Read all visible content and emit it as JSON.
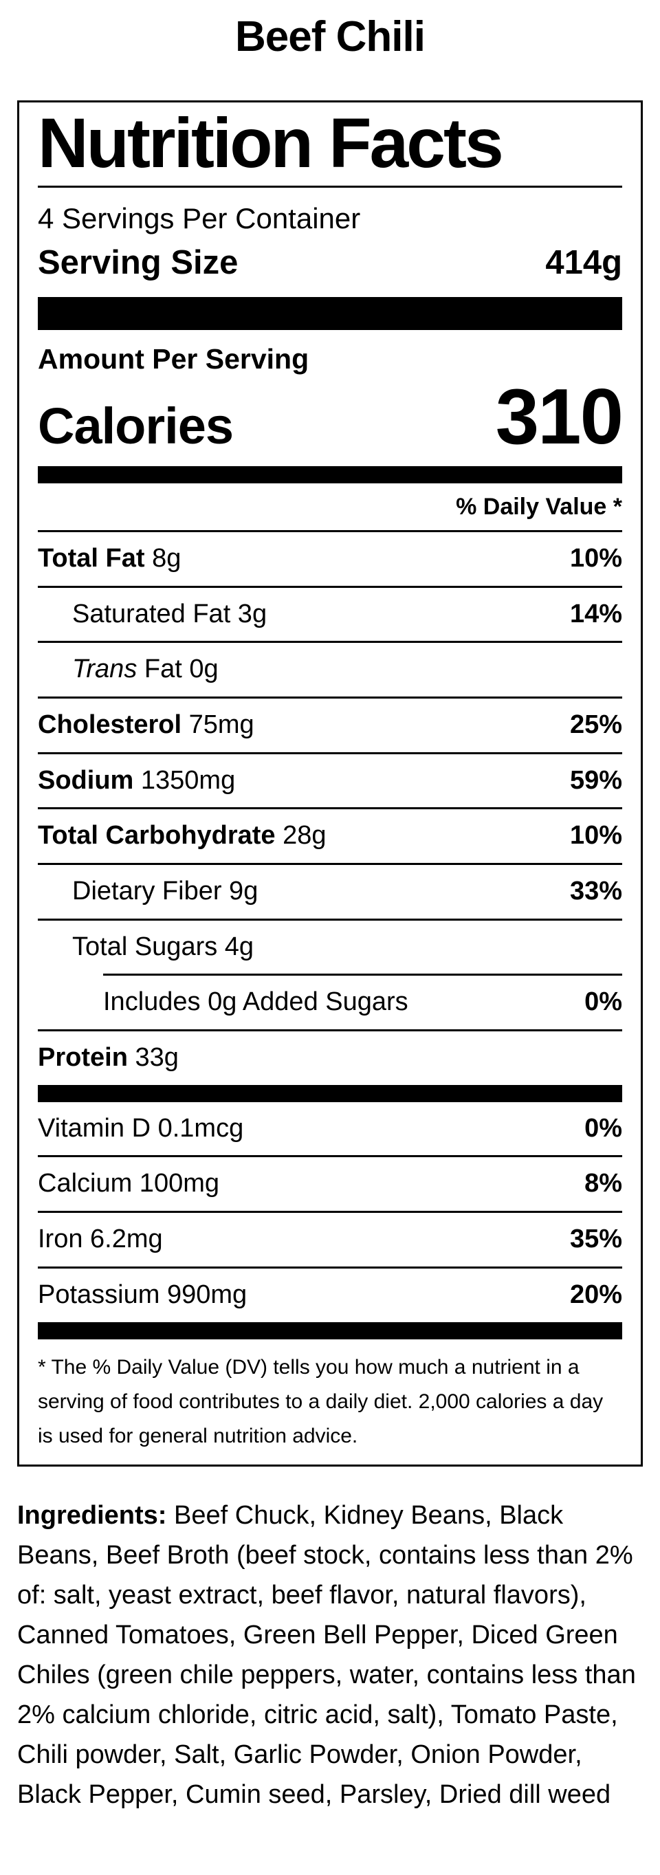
{
  "page": {
    "title": "Beef Chili",
    "colors": {
      "background": "#ffffff",
      "text": "#000000"
    }
  },
  "label": {
    "heading": "Nutrition Facts",
    "servings_per_container": "4 Servings Per Container",
    "serving_size_label": "Serving Size",
    "serving_size_value": "414g",
    "amount_per_serving": "Amount Per Serving",
    "calories_label": "Calories",
    "calories_value": "310",
    "daily_value_header": "% Daily Value *",
    "rows": [
      {
        "name": "Total Fat",
        "bold": true,
        "amount": "8g",
        "dv": "10%",
        "indent": 0
      },
      {
        "name": "Saturated Fat",
        "bold": false,
        "amount": "3g",
        "dv": "14%",
        "indent": 1
      },
      {
        "name": "Trans",
        "bold": false,
        "italic": true,
        "amount": "Fat 0g",
        "dv": "",
        "indent": 1
      },
      {
        "name": "Cholesterol",
        "bold": true,
        "amount": "75mg",
        "dv": "25%",
        "indent": 0
      },
      {
        "name": "Sodium",
        "bold": true,
        "amount": "1350mg",
        "dv": "59%",
        "indent": 0
      },
      {
        "name": "Total Carbohydrate",
        "bold": true,
        "amount": "28g",
        "dv": "10%",
        "indent": 0
      },
      {
        "name": "Dietary Fiber",
        "bold": false,
        "amount": "9g",
        "dv": "33%",
        "indent": 1
      },
      {
        "name": "Total Sugars",
        "bold": false,
        "amount": "4g",
        "dv": "",
        "indent": 1
      },
      {
        "name": "Includes 0g Added Sugars",
        "bold": false,
        "amount": "",
        "dv": "0%",
        "indent": 2
      },
      {
        "name": "Protein",
        "bold": true,
        "amount": "33g",
        "dv": "",
        "indent": 0
      }
    ],
    "micronutrients": [
      {
        "name": "Vitamin D",
        "bold": false,
        "amount": "0.1mcg",
        "dv": "0%",
        "indent": 0
      },
      {
        "name": "Calcium",
        "bold": false,
        "amount": "100mg",
        "dv": "8%",
        "indent": 0
      },
      {
        "name": "Iron",
        "bold": false,
        "amount": "6.2mg",
        "dv": "35%",
        "indent": 0
      },
      {
        "name": "Potassium",
        "bold": false,
        "amount": "990mg",
        "dv": "20%",
        "indent": 0
      }
    ],
    "footnote": "* The % Daily Value (DV) tells you how much a nutrient in a serving of food contributes to a daily diet. 2,000 calories a day is used for general nutrition advice."
  },
  "ingredients": {
    "label": "Ingredients:",
    "text": " Beef Chuck, Kidney Beans, Black Beans, Beef Broth (beef stock, contains less than 2% of: salt, yeast extract, beef flavor, natural flavors), Canned Tomatoes, Green Bell Pepper, Diced Green Chiles (green chile peppers, water, contains less than 2% calcium chloride, citric acid, salt), Tomato Paste, Chili powder, Salt, Garlic Powder, Onion Powder, Black Pepper, Cumin seed, Parsley, Dried dill weed"
  }
}
